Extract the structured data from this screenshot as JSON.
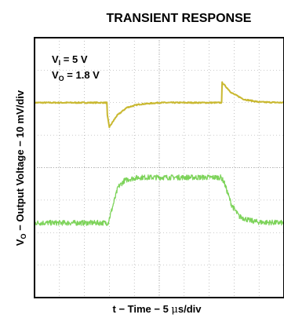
{
  "chart_data": {
    "type": "line",
    "title": "TRANSIENT RESPONSE",
    "xlabel": "t − Time − 5 μs/div",
    "ylabel": "Vₒ − Output Voltage − 10 mV/div",
    "xlabel_parts": {
      "pre": "t − Time − 5 ",
      "greek": "μ",
      "post": "s/div"
    },
    "ylabel_parts": {
      "pre": "V",
      "sub": "O",
      "post": " − Output Voltage − 10 mV/div"
    },
    "annotations": [
      {
        "symbol": "V",
        "sub": "I",
        "rest": " = 5 V"
      },
      {
        "symbol": "V",
        "sub": "O",
        "rest": " = 1.8 V"
      }
    ],
    "x_divisions": 10,
    "y_divisions": 8,
    "xlim": [
      0,
      10
    ],
    "ylim": [
      0,
      8
    ],
    "grid": true,
    "series": [
      {
        "color": "#c9b830",
        "x": [
          0,
          2.9,
          2.92,
          3.0,
          3.3,
          3.7,
          4.2,
          5.0,
          7.5,
          7.52,
          7.6,
          7.9,
          8.4,
          9.0,
          10
        ],
        "y": [
          6.0,
          6.0,
          5.6,
          5.25,
          5.6,
          5.85,
          5.95,
          6.0,
          6.0,
          6.62,
          6.55,
          6.3,
          6.1,
          6.02,
          6.0
        ]
      },
      {
        "color": "#7dd35a",
        "x": [
          0,
          2.95,
          3.35,
          3.6,
          3.8,
          4.2,
          7.48,
          7.6,
          7.9,
          8.2,
          8.6,
          9.0,
          10
        ],
        "y": [
          2.3,
          2.3,
          3.4,
          3.6,
          3.65,
          3.7,
          3.7,
          3.55,
          2.85,
          2.5,
          2.38,
          2.32,
          2.3
        ]
      }
    ]
  }
}
